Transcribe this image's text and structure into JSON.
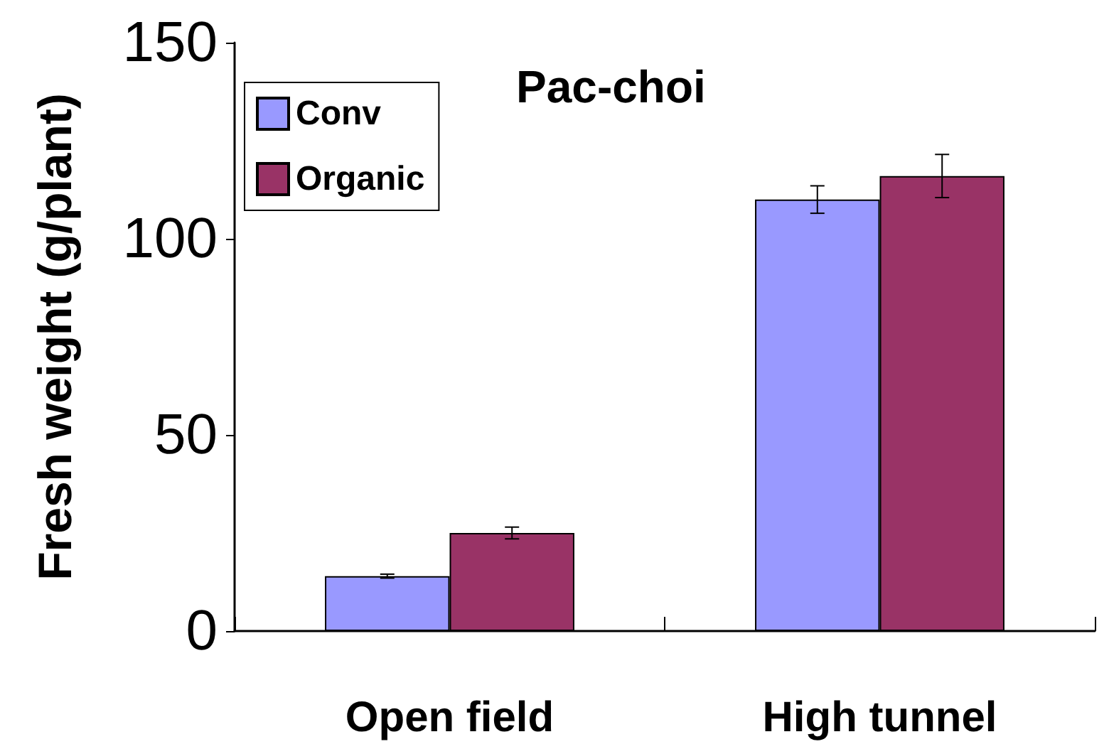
{
  "chart_data": {
    "type": "bar",
    "title": "Pac-choi",
    "ylabel": "Fresh weight (g/plant)",
    "categories": [
      "Open field",
      "High tunnel"
    ],
    "series": [
      {
        "name": "Conv",
        "color": "#9999ff",
        "values": [
          14,
          110
        ],
        "errors": [
          0.5,
          3.5
        ]
      },
      {
        "name": "Organic",
        "color": "#993366",
        "values": [
          25,
          116
        ],
        "errors": [
          1.5,
          5.5
        ]
      }
    ],
    "ylim": [
      0,
      150
    ],
    "yticks": [
      0,
      50,
      100,
      150
    ],
    "grid": false,
    "legend": "top left"
  }
}
